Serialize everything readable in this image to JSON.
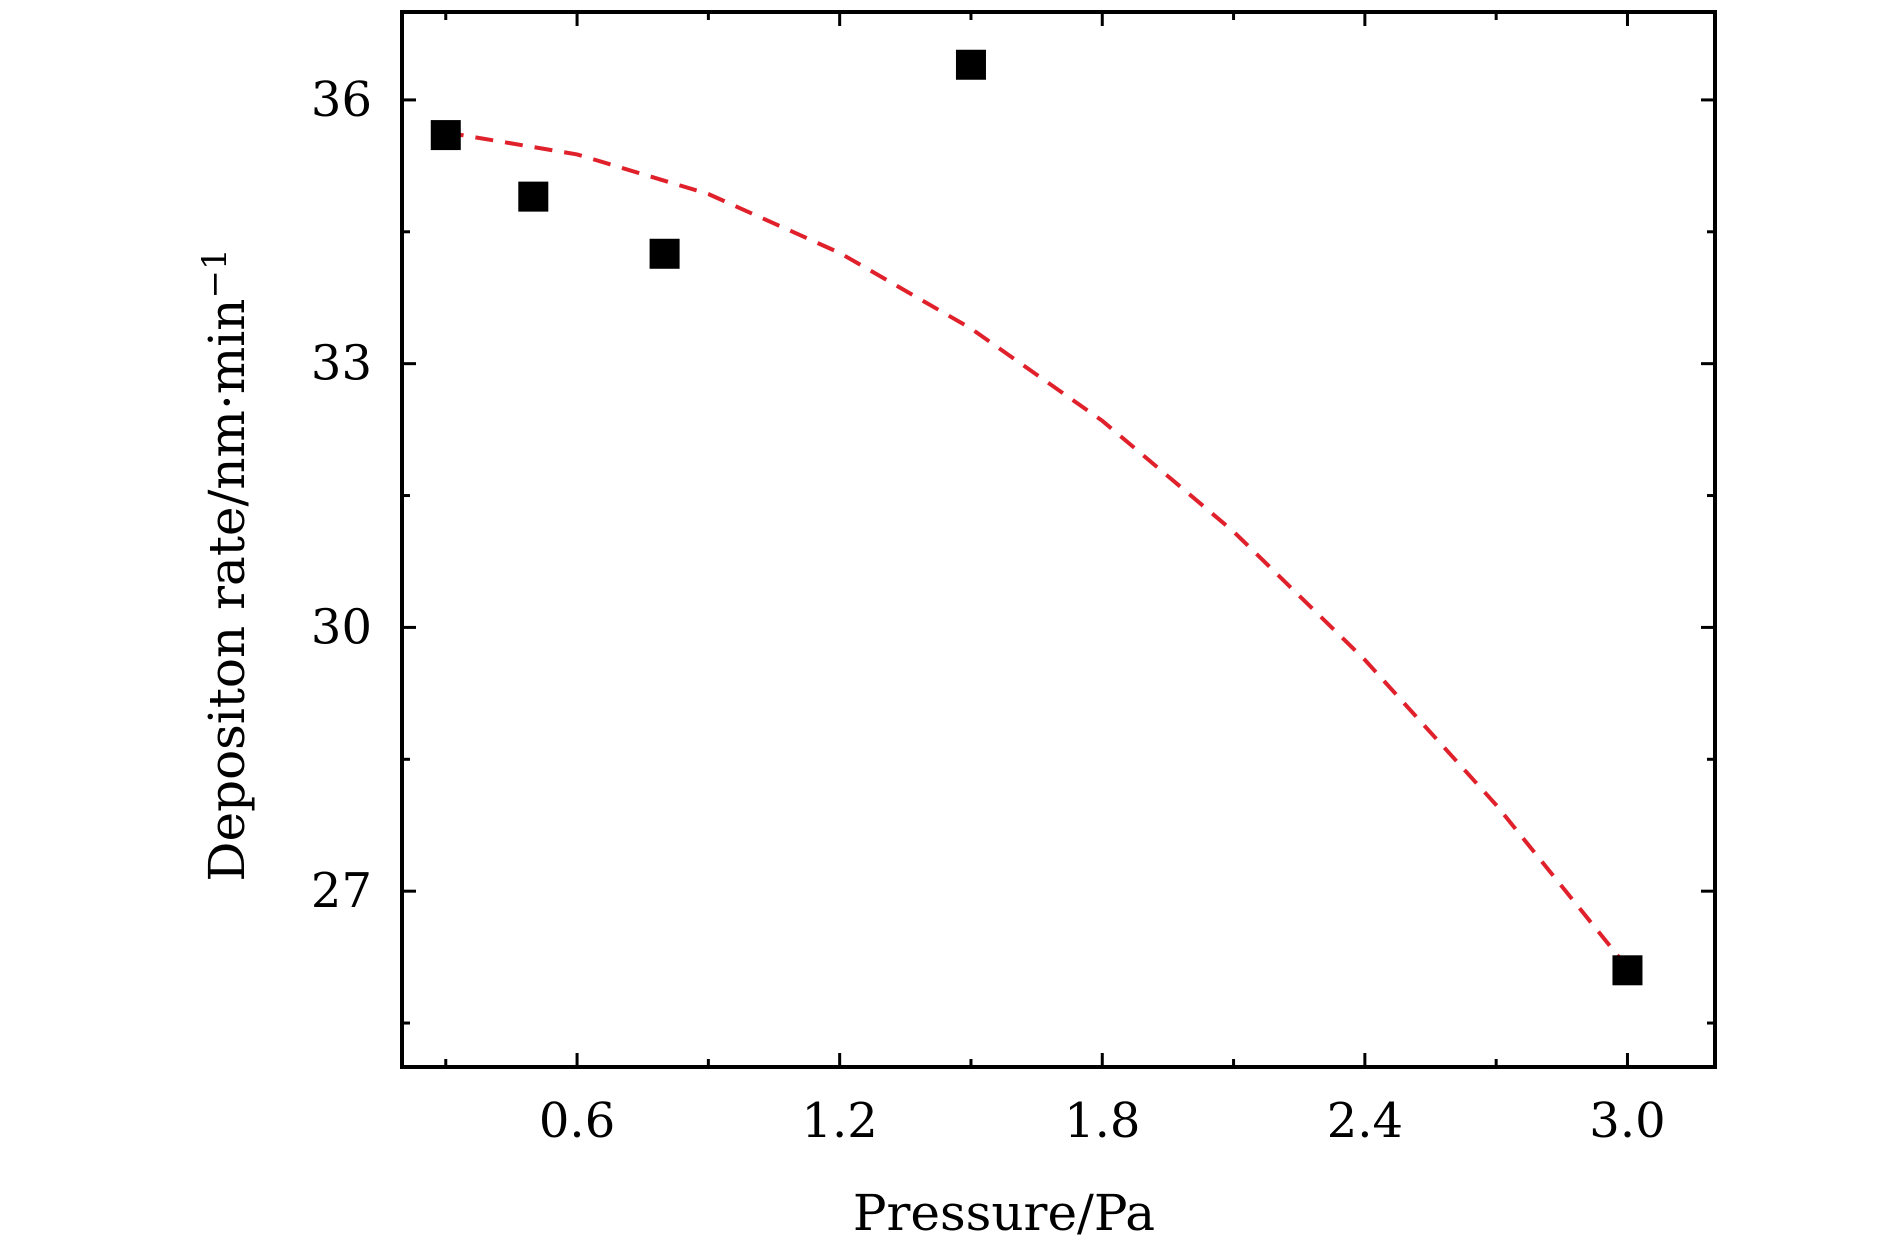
{
  "chart_data": {
    "type": "scatter",
    "xlabel": "Pressure/Pa",
    "ylabel": "Depositon rate/nm·min",
    "ylabel_superscript": "−1",
    "xlim": [
      0.2,
      3.2
    ],
    "ylim": [
      25.0,
      37.0
    ],
    "x_ticks": [
      0.6,
      1.2,
      1.8,
      2.4,
      3.0
    ],
    "x_tick_labels": [
      "0.6",
      "1.2",
      "1.8",
      "2.4",
      "3.0"
    ],
    "y_ticks": [
      27,
      30,
      33,
      36
    ],
    "y_tick_labels": [
      "27",
      "30",
      "33",
      "36"
    ],
    "grid": false,
    "series": [
      {
        "marker": "square",
        "color": "#000000",
        "x": [
          0.3,
          0.5,
          0.8,
          1.5,
          3.0
        ],
        "y": [
          35.6,
          34.9,
          34.25,
          36.4,
          26.1
        ]
      }
    ],
    "fit_line": {
      "style": "dashed",
      "color": "#e0202a",
      "x": [
        0.3,
        0.6,
        0.9,
        1.2,
        1.5,
        1.8,
        2.1,
        2.4,
        2.7,
        3.0
      ],
      "y": [
        35.63,
        35.38,
        34.93,
        34.26,
        33.4,
        32.35,
        31.09,
        29.63,
        27.98,
        26.13
      ]
    }
  }
}
